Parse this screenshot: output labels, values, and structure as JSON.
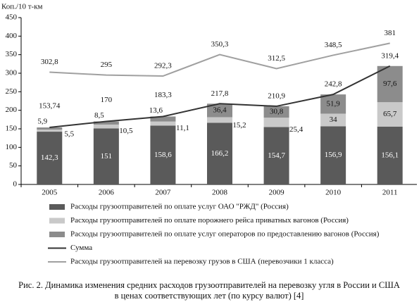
{
  "chart_data": {
    "type": "bar",
    "stacked": true,
    "y_label": "Коп./10 т-км",
    "categories": [
      "2005",
      "2006",
      "2007",
      "2008",
      "2009",
      "2010",
      "2011"
    ],
    "series": [
      {
        "name": "Расходы грузоотправителей по оплате услуг ОАО \"РЖД\" (Россия)",
        "type": "bar",
        "color": "#5a5a5a",
        "values": [
          142.3,
          151,
          158.6,
          166.2,
          154.7,
          156.9,
          156.1
        ],
        "value_labels": [
          "142,3",
          "151",
          "158,6",
          "166,2",
          "154,7",
          "156,9",
          "156,1"
        ]
      },
      {
        "name": "Расходы грузоотправителей по оплате порожнего рейса приватных вагонов (Россия)",
        "type": "bar",
        "color": "#c9c9c9",
        "values": [
          5.5,
          10.5,
          11.1,
          15.2,
          25.4,
          34,
          65.7
        ],
        "value_labels": [
          "5,5",
          "10,5",
          "11,1",
          "15,2",
          "25,4",
          "34",
          "65,7"
        ]
      },
      {
        "name": "Расходы грузоотправителей по оплате услуг операторов по предоставлению вагонов (Россия)",
        "type": "bar",
        "color": "#8c8c8c",
        "values": [
          5.9,
          8.5,
          13.6,
          36.4,
          30.8,
          51.9,
          97.6
        ],
        "value_labels": [
          "5,9",
          "8,5",
          "13,6",
          "36,4",
          "30,8",
          "51,9",
          "97,6"
        ]
      },
      {
        "name": "Сумма",
        "type": "line",
        "color": "#333333",
        "values": [
          153.74,
          170,
          183.3,
          217.8,
          210.9,
          242.8,
          319.4
        ],
        "value_labels": [
          "153,74",
          "170",
          "183,3",
          "217,8",
          "210,9",
          "242,8",
          "319,4"
        ]
      },
      {
        "name": "Расходы грузоотправителей на перевозку грузов в США (перевозчики 1 класса)",
        "type": "line",
        "color": "#a0a0a0",
        "values": [
          302.8,
          295,
          292.3,
          350.3,
          312.5,
          348.5,
          381
        ],
        "value_labels": [
          "302,8",
          "295",
          "292,3",
          "350,3",
          "312,5",
          "348,5",
          "381"
        ]
      }
    ],
    "ylim": [
      0,
      450
    ],
    "yticks": [
      0,
      50,
      100,
      150,
      200,
      250,
      300,
      350,
      400,
      450
    ],
    "caption": [
      "Рис. 2. Динамика изменения средних расходов грузоотправителей на перевозку угля в России и США",
      "в ценах соответствующих лет (по курсу валют) [4]"
    ]
  }
}
